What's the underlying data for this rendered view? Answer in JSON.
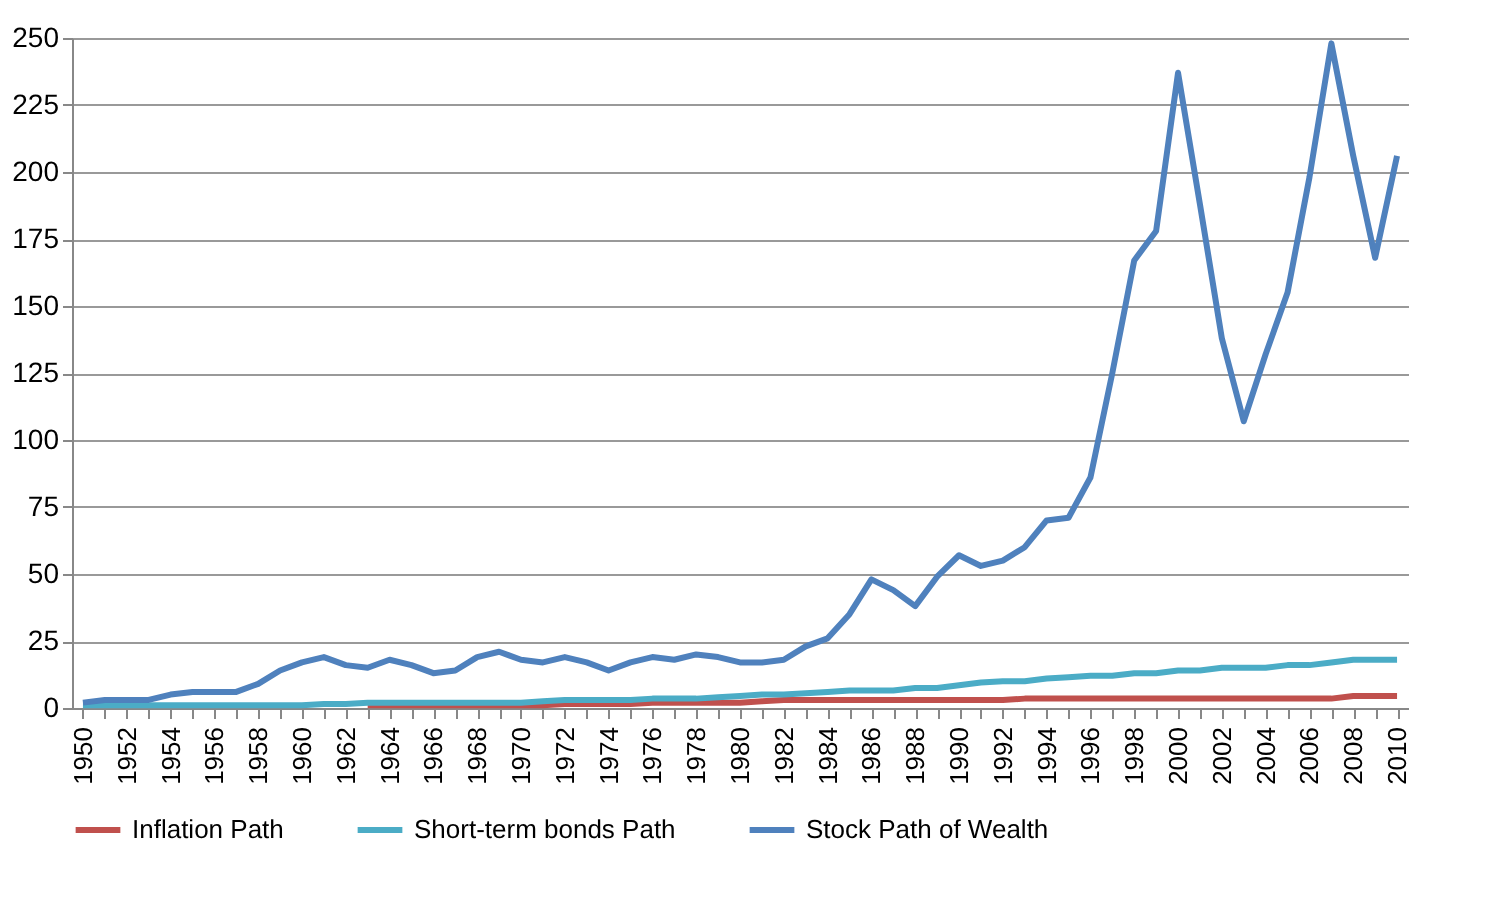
{
  "chart_data": {
    "type": "line",
    "categories": [
      "1950",
      null,
      "1952",
      null,
      "1954",
      null,
      "1956",
      null,
      "1958",
      null,
      "1960",
      null,
      "1962",
      null,
      "1964",
      null,
      "1966",
      null,
      "1968",
      null,
      "1970",
      null,
      "1972",
      null,
      "1974",
      null,
      "1976",
      null,
      "1978",
      null,
      "1980",
      null,
      "1982",
      null,
      "1984",
      null,
      "1986",
      null,
      "1988",
      null,
      "1990",
      null,
      "1992",
      null,
      "1994",
      null,
      "1996",
      null,
      "1998",
      null,
      "2000",
      null,
      "2002",
      null,
      "2004",
      null,
      "2006",
      null,
      "2008",
      null,
      "2010"
    ],
    "series": [
      {
        "name": "Inflation Path",
        "color": "#c0504d",
        "values": [
          null,
          null,
          null,
          null,
          null,
          null,
          null,
          null,
          null,
          null,
          null,
          null,
          null,
          1,
          1,
          1,
          1,
          1,
          1,
          1,
          1,
          1,
          1.5,
          1.5,
          1.5,
          1.5,
          2,
          2,
          2,
          2,
          2,
          2.5,
          3,
          3,
          3,
          3,
          3,
          3,
          3,
          3,
          3,
          3,
          3,
          3.5,
          3.5,
          3.5,
          3.5,
          3.5,
          3.5,
          3.5,
          3.5,
          3.5,
          3.5,
          3.5,
          3.5,
          3.5,
          3.5,
          3.5,
          4.5,
          4.5,
          4.5
        ]
      },
      {
        "name": "Short-term bonds Path",
        "color": "#4bacc6",
        "values": [
          1,
          1,
          1,
          1,
          1,
          1,
          1,
          1,
          1,
          1,
          1,
          1.5,
          1.5,
          2,
          2,
          2,
          2,
          2,
          2,
          2,
          2,
          2.5,
          3,
          3,
          3,
          3,
          3.5,
          3.5,
          3.5,
          4,
          4.5,
          5,
          5,
          5.5,
          6,
          6.5,
          6.5,
          6.5,
          7.5,
          7.5,
          8.5,
          9.5,
          10,
          10,
          11,
          11.5,
          12,
          12,
          13,
          13,
          14,
          14,
          15,
          15,
          15,
          16,
          16,
          17,
          18,
          18,
          18
        ]
      },
      {
        "name": "Stock Path of Wealth",
        "color": "#4f81bd",
        "values": [
          2,
          3,
          3,
          3,
          5,
          6,
          6,
          6,
          9,
          14,
          17,
          19,
          16,
          15,
          18,
          16,
          13,
          14,
          19,
          21,
          18,
          17,
          19,
          17,
          14,
          17,
          19,
          18,
          20,
          19,
          17,
          17,
          18,
          23,
          26,
          35,
          48,
          44,
          38,
          49,
          57,
          53,
          55,
          60,
          70,
          71,
          86,
          125,
          167,
          178,
          237,
          188,
          138,
          107,
          132,
          155,
          198,
          248,
          206,
          168,
          206
        ]
      }
    ],
    "ylim": [
      0,
      250
    ],
    "yticks": [
      0,
      25,
      50,
      75,
      100,
      125,
      150,
      175,
      200,
      225,
      250
    ],
    "grid": "y",
    "legend": "bottom",
    "marker": "none",
    "line_style": "solid"
  }
}
